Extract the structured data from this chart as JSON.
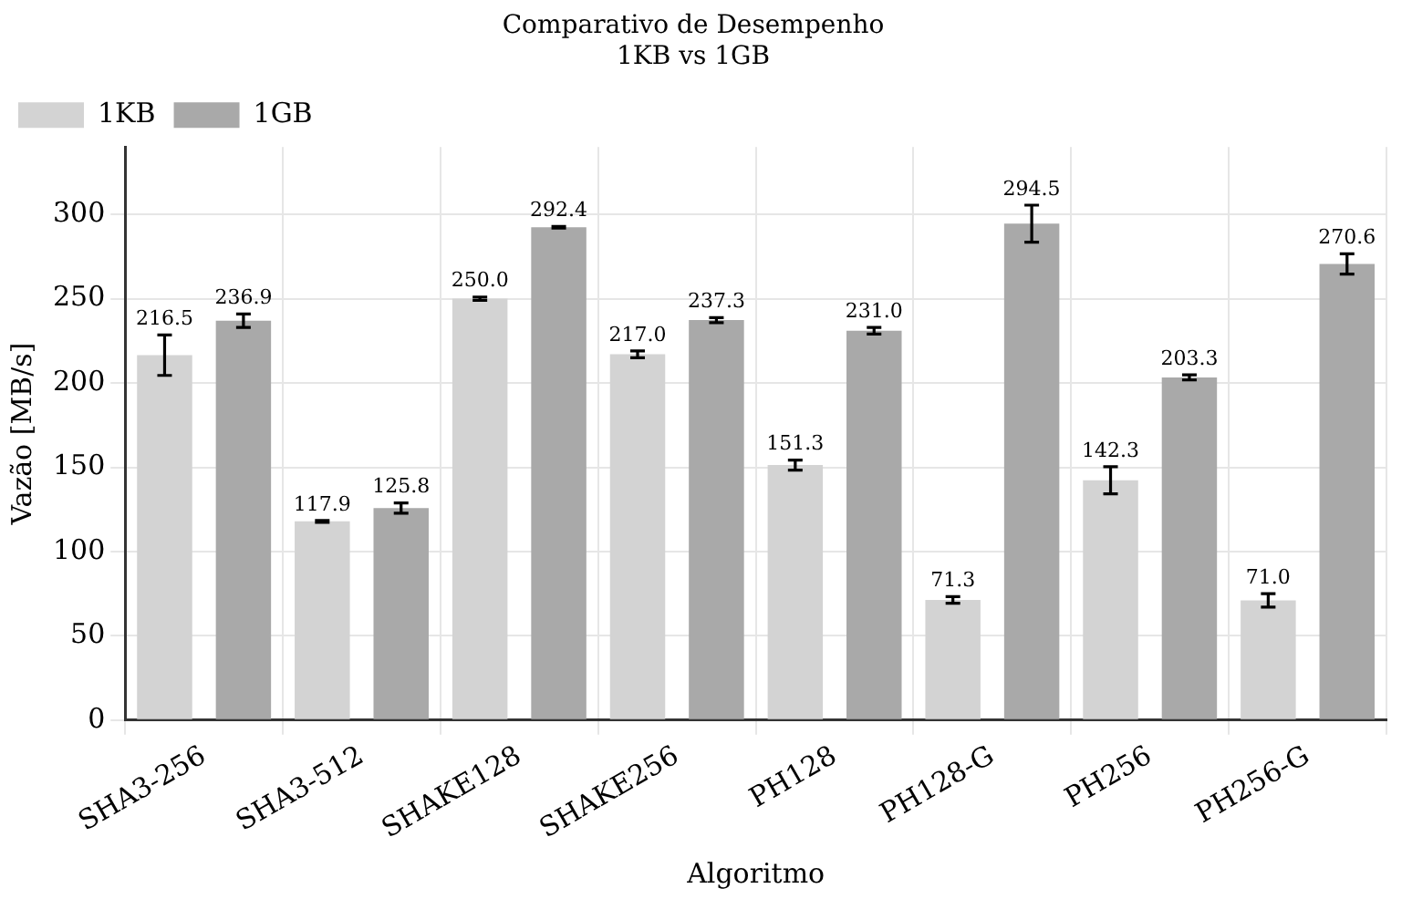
{
  "chart_data": {
    "type": "bar",
    "title": "Comparativo de Desempenho\n1KB vs 1GB",
    "xlabel": "Algoritmo",
    "ylabel": "Vazão [MB/s]",
    "categories": [
      "SHA3-256",
      "SHA3-512",
      "SHAKE128",
      "SHAKE256",
      "PH128",
      "PH128-G",
      "PH256",
      "PH256-G"
    ],
    "series": [
      {
        "name": "1KB",
        "color": "#d3d3d3",
        "values": [
          216.5,
          117.9,
          250.0,
          217.0,
          151.3,
          71.3,
          142.3,
          71.0
        ],
        "value_labels": [
          "216.5",
          "117.9",
          "250.0",
          "217.0",
          "151.3",
          "71.3",
          "142.3",
          "71.0"
        ],
        "errors": [
          12,
          0.5,
          1,
          2,
          3,
          2,
          8,
          4
        ]
      },
      {
        "name": "1GB",
        "color": "#a9a9a9",
        "values": [
          236.9,
          125.8,
          292.4,
          237.3,
          231.0,
          294.5,
          203.3,
          270.6
        ],
        "value_labels": [
          "236.9",
          "125.8",
          "292.4",
          "237.3",
          "231.0",
          "294.5",
          "203.3",
          "270.6"
        ],
        "errors": [
          4,
          3,
          0.5,
          1.5,
          2,
          11,
          1.5,
          6
        ]
      }
    ],
    "ylim": [
      0,
      340
    ],
    "yticks": [
      0,
      50,
      100,
      150,
      200,
      250,
      300
    ],
    "grid": true,
    "legend": "top left"
  }
}
